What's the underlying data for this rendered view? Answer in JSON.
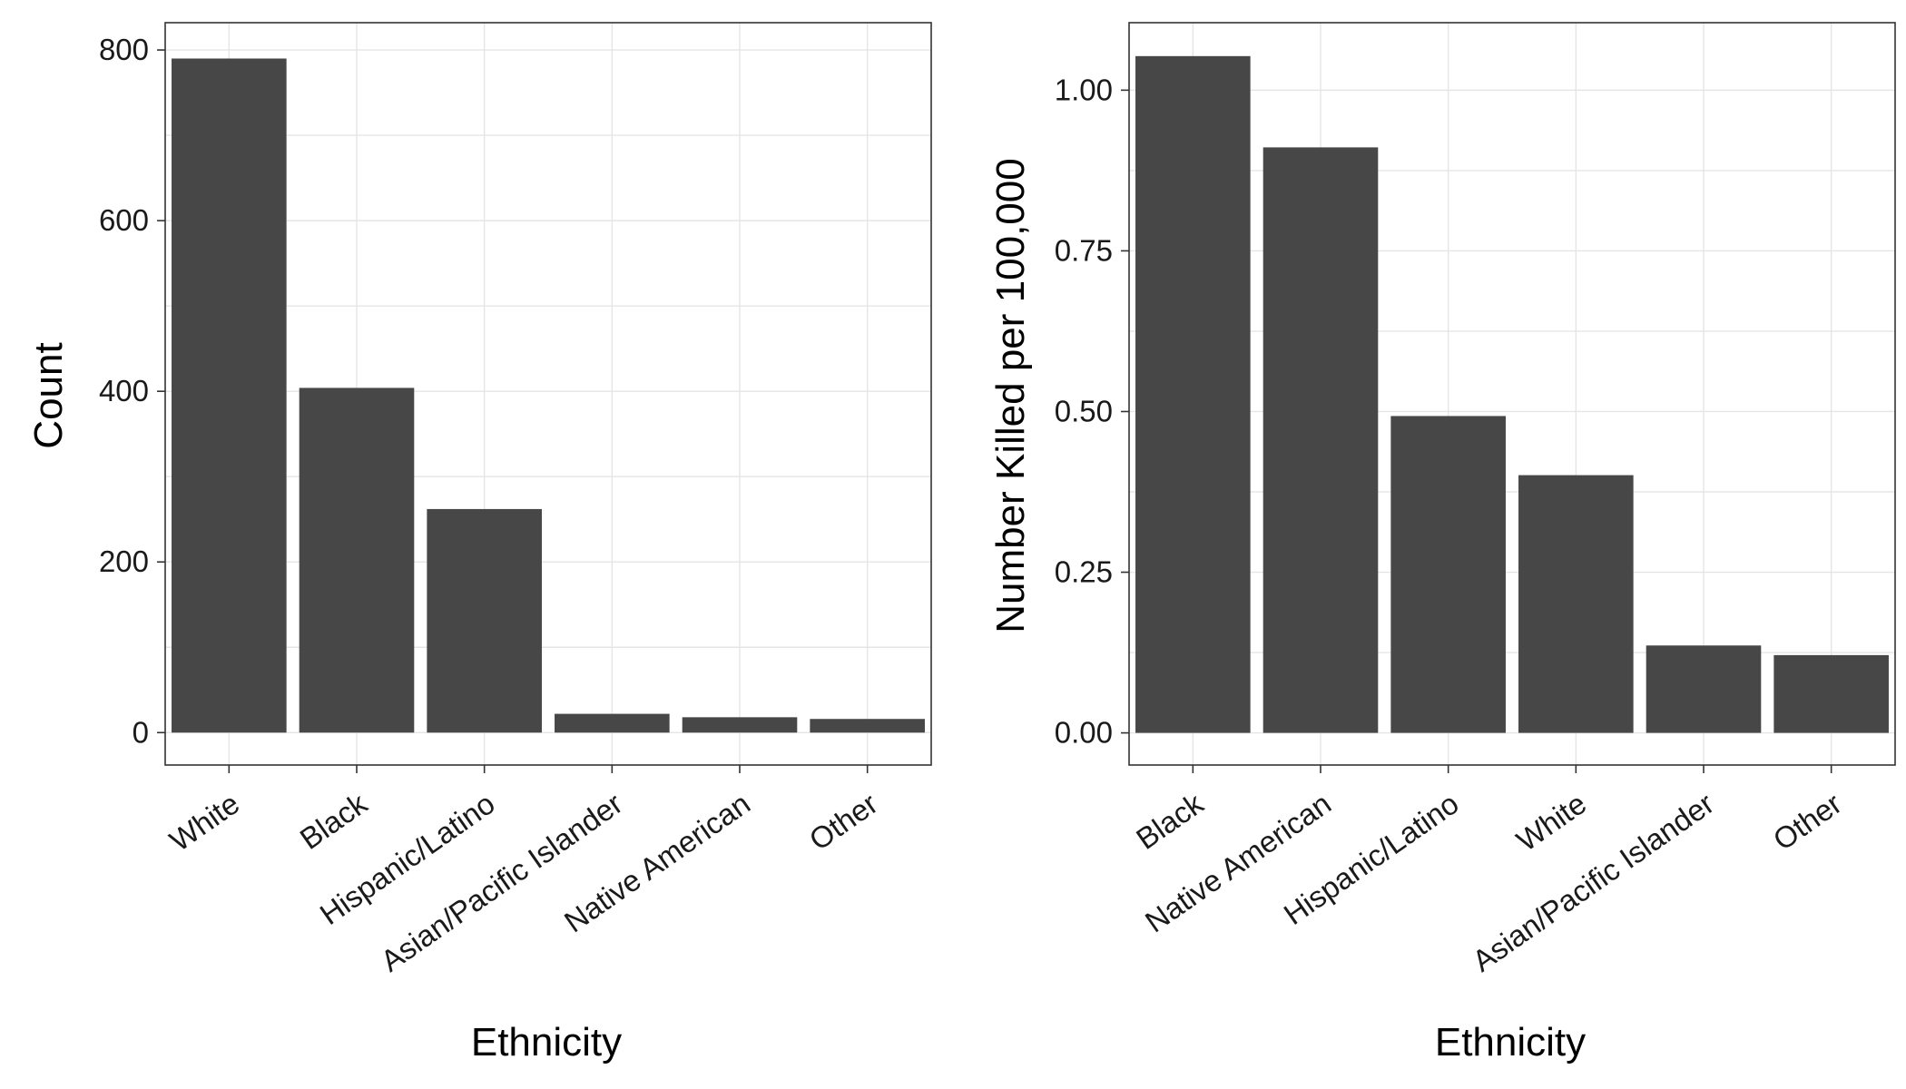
{
  "chart_data": [
    {
      "type": "bar",
      "title": "",
      "xlabel": "Ethnicity",
      "ylabel": "Count",
      "categories": [
        "White",
        "Black",
        "Hispanic/Latino",
        "Asian/Pacific Islander",
        "Native American",
        "Other"
      ],
      "values": [
        790,
        404,
        262,
        22,
        18,
        16
      ],
      "ylim": [
        -38,
        832
      ],
      "yticks": [
        0,
        200,
        400,
        600,
        800
      ],
      "ytick_labels": [
        "0",
        "200",
        "400",
        "600",
        "800"
      ],
      "grid": true,
      "bar_color": "#474747"
    },
    {
      "type": "bar",
      "title": "",
      "xlabel": "Ethnicity",
      "ylabel": "Number Killed per 100,000",
      "categories": [
        "Black",
        "Native American",
        "Hispanic/Latino",
        "White",
        "Asian/Pacific Islander",
        "Other"
      ],
      "values": [
        1.053,
        0.911,
        0.493,
        0.401,
        0.136,
        0.121
      ],
      "ylim": [
        -0.05,
        1.105
      ],
      "yticks": [
        0,
        0.25,
        0.5,
        0.75,
        1.0
      ],
      "ytick_labels": [
        "0.00",
        "0.25",
        "0.50",
        "0.75",
        "1.00"
      ],
      "grid": true,
      "bar_color": "#474747"
    }
  ]
}
